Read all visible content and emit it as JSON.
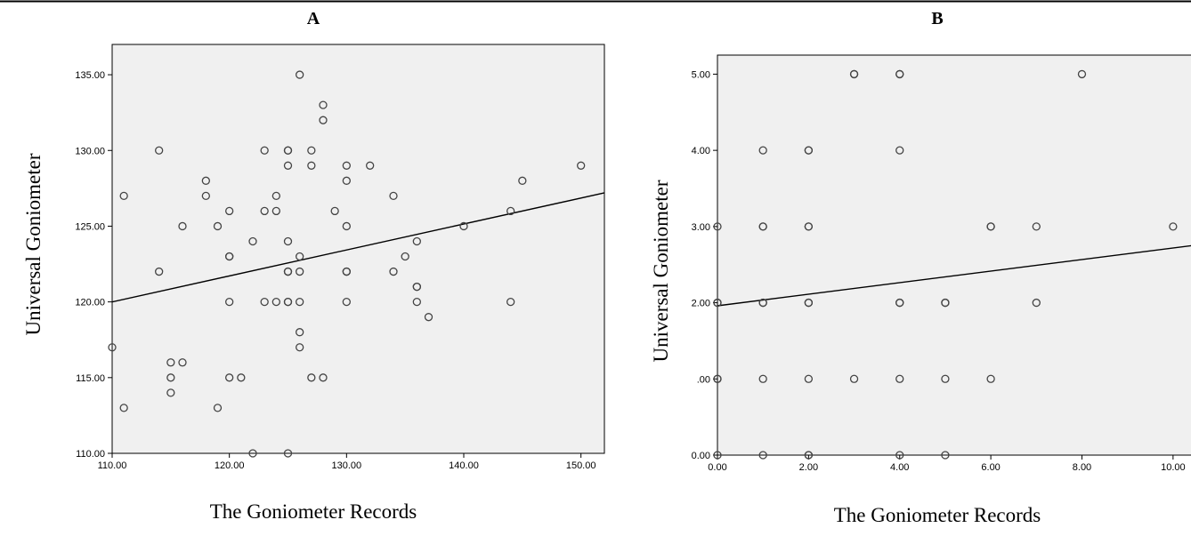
{
  "chart_data": [
    {
      "panel": "A",
      "type": "scatter",
      "xlabel": "The Goniometer Records",
      "ylabel": "Universal Goniometer",
      "xlim": [
        110,
        152
      ],
      "ylim": [
        110,
        137
      ],
      "x_ticks": [
        "110.00",
        "120.00",
        "130.00",
        "140.00",
        "150.00"
      ],
      "y_ticks": [
        "110.00",
        "115.00",
        "120.00",
        "125.00",
        "130.00",
        "135.00"
      ],
      "grid": false,
      "fit_line": {
        "x0": 110,
        "y0": 120,
        "x1": 152,
        "y1": 127.2
      },
      "points": [
        [
          110,
          117
        ],
        [
          111,
          127
        ],
        [
          111,
          113
        ],
        [
          114,
          130
        ],
        [
          114,
          122
        ],
        [
          115,
          116
        ],
        [
          115,
          115
        ],
        [
          115,
          114
        ],
        [
          116,
          125
        ],
        [
          116,
          116
        ],
        [
          118,
          128
        ],
        [
          118,
          127
        ],
        [
          119,
          125
        ],
        [
          119,
          113
        ],
        [
          120,
          126
        ],
        [
          120,
          123
        ],
        [
          120,
          123
        ],
        [
          120,
          120
        ],
        [
          120,
          115
        ],
        [
          121,
          115
        ],
        [
          122,
          124
        ],
        [
          122,
          110
        ],
        [
          123,
          130
        ],
        [
          123,
          126
        ],
        [
          123,
          120
        ],
        [
          124,
          127
        ],
        [
          124,
          126
        ],
        [
          124,
          120
        ],
        [
          125,
          130
        ],
        [
          125,
          130
        ],
        [
          125,
          129
        ],
        [
          125,
          124
        ],
        [
          125,
          122
        ],
        [
          125,
          122
        ],
        [
          125,
          120
        ],
        [
          125,
          120
        ],
        [
          125,
          110
        ],
        [
          126,
          135
        ],
        [
          126,
          123
        ],
        [
          126,
          122
        ],
        [
          126,
          120
        ],
        [
          126,
          118
        ],
        [
          126,
          117
        ],
        [
          127,
          130
        ],
        [
          127,
          129
        ],
        [
          127,
          115
        ],
        [
          128,
          133
        ],
        [
          128,
          132
        ],
        [
          128,
          115
        ],
        [
          129,
          126
        ],
        [
          130,
          129
        ],
        [
          130,
          128
        ],
        [
          130,
          125
        ],
        [
          130,
          122
        ],
        [
          130,
          122
        ],
        [
          130,
          120
        ],
        [
          132,
          129
        ],
        [
          134,
          127
        ],
        [
          134,
          122
        ],
        [
          135,
          123
        ],
        [
          136,
          124
        ],
        [
          136,
          121
        ],
        [
          136,
          121
        ],
        [
          136,
          120
        ],
        [
          137,
          119
        ],
        [
          140,
          125
        ],
        [
          144,
          126
        ],
        [
          144,
          120
        ],
        [
          145,
          128
        ],
        [
          150,
          129
        ]
      ]
    },
    {
      "panel": "B",
      "type": "scatter",
      "xlabel": "The Goniometer Records",
      "ylabel": "Universal Goniometer",
      "xlim": [
        0,
        10.55
      ],
      "ylim": [
        0,
        5.25
      ],
      "x_ticks": [
        "0.00",
        "2.00",
        "4.00",
        "6.00",
        "8.00",
        "10.00"
      ],
      "y_ticks": [
        "0.00",
        ".00",
        "2.00",
        "3.00",
        "4.00",
        "5.00"
      ],
      "grid": false,
      "fit_line": {
        "x0": 0,
        "y0": 1.96,
        "x1": 10.55,
        "y1": 2.76
      },
      "points": [
        [
          0,
          3
        ],
        [
          0,
          2
        ],
        [
          0,
          2
        ],
        [
          0,
          1
        ],
        [
          0,
          1
        ],
        [
          0,
          0
        ],
        [
          1,
          4
        ],
        [
          1,
          3
        ],
        [
          1,
          3
        ],
        [
          1,
          2
        ],
        [
          1,
          2
        ],
        [
          1,
          1
        ],
        [
          1,
          0
        ],
        [
          2,
          4
        ],
        [
          2,
          4
        ],
        [
          2,
          3
        ],
        [
          2,
          3
        ],
        [
          2,
          2
        ],
        [
          2,
          2
        ],
        [
          2,
          1
        ],
        [
          2,
          0
        ],
        [
          2,
          0
        ],
        [
          3,
          5
        ],
        [
          3,
          5
        ],
        [
          3,
          1
        ],
        [
          4,
          5
        ],
        [
          4,
          5
        ],
        [
          4,
          4
        ],
        [
          4,
          2
        ],
        [
          4,
          2
        ],
        [
          4,
          1
        ],
        [
          4,
          0
        ],
        [
          5,
          2
        ],
        [
          5,
          2
        ],
        [
          5,
          1
        ],
        [
          5,
          0
        ],
        [
          6,
          3
        ],
        [
          6,
          3
        ],
        [
          6,
          1
        ],
        [
          7,
          3
        ],
        [
          7,
          2
        ],
        [
          8,
          5
        ],
        [
          10,
          3
        ]
      ]
    }
  ]
}
